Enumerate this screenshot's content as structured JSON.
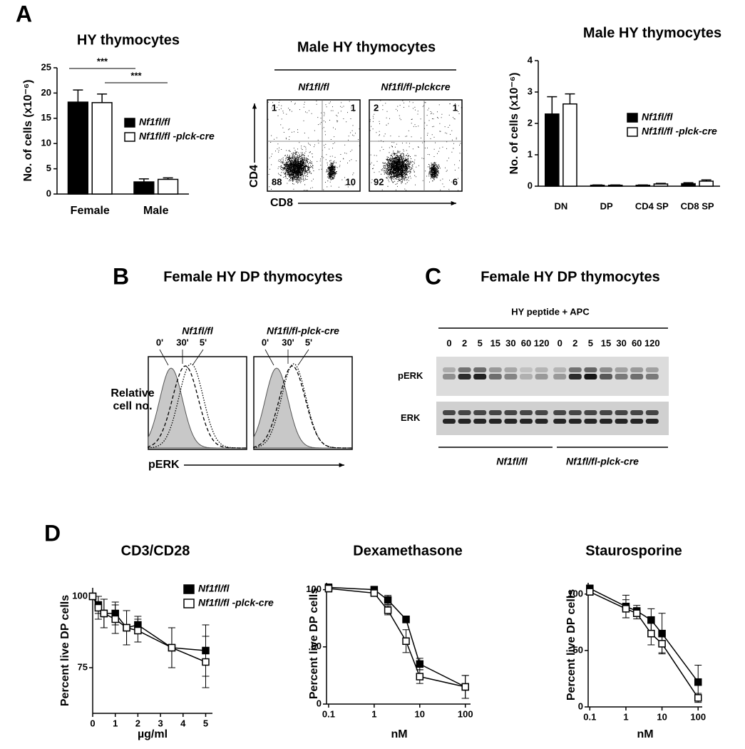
{
  "panel_labels": [
    "A",
    "B",
    "C",
    "D"
  ],
  "chart_data": [
    {
      "type": "bar",
      "title": "HY thymocytes",
      "y_label": "No. of cells (x10⁻⁶)",
      "categories": [
        "Female",
        "Male"
      ],
      "series": [
        {
          "name": "Nf1fl/fl",
          "color": "#000000",
          "values": [
            18.2,
            2.4
          ],
          "errors": [
            2.4,
            0.6
          ]
        },
        {
          "name": "Nf1fl/fl -plck-cre",
          "color": "#ffffff",
          "values": [
            18.1,
            2.9
          ],
          "errors": [
            1.7,
            0.3
          ]
        }
      ],
      "ylim": [
        0,
        25
      ],
      "yticks": [
        0,
        5,
        10,
        15,
        20,
        25
      ],
      "annotations": [
        "***",
        "***"
      ]
    },
    {
      "type": "bar",
      "title": "Male HY thymocytes",
      "y_label": "No. of cells (x10⁻⁶)",
      "categories": [
        "DN",
        "DP",
        "CD4 SP",
        "CD8 SP"
      ],
      "series": [
        {
          "name": "Nf1fl/fl",
          "color": "#000000",
          "values": [
            2.3,
            0.03,
            0.03,
            0.08
          ],
          "errors": [
            0.55,
            0.01,
            0.01,
            0.03
          ]
        },
        {
          "name": "Nf1fl/fl -plck-cre",
          "color": "#ffffff",
          "values": [
            2.62,
            0.03,
            0.07,
            0.16
          ],
          "errors": [
            0.32,
            0.01,
            0.02,
            0.04
          ]
        }
      ],
      "ylim": [
        0,
        4
      ],
      "yticks": [
        0,
        1,
        2,
        3,
        4
      ]
    },
    {
      "type": "line",
      "title": "CD3/CD28",
      "x_label": "µg/ml",
      "y_label": "Percent live DP cells",
      "x": [
        0,
        0.25,
        0.5,
        1,
        1.5,
        2,
        3.5,
        5
      ],
      "series": [
        {
          "name": "Nf1fl/fl",
          "color": "#000000",
          "values": [
            100,
            97,
            94,
            94,
            89,
            90,
            82,
            81
          ],
          "errors": [
            0,
            3,
            5,
            4,
            6,
            3,
            7,
            9
          ]
        },
        {
          "name": "Nf1fl/fl -plck-cre",
          "color": "#ffffff",
          "values": [
            100,
            96,
            94,
            92,
            89,
            88,
            82,
            77
          ],
          "errors": [
            0,
            4,
            5,
            5,
            6,
            4,
            7,
            9
          ]
        }
      ],
      "xlim": [
        0,
        5.3
      ],
      "xticks": [
        0,
        1,
        2,
        3,
        4,
        5
      ],
      "ylim": [
        59,
        103
      ],
      "yticks": [
        75,
        100
      ]
    },
    {
      "type": "line",
      "title": "Dexamethasone",
      "x_label": "nM",
      "y_label": "Percent live DP cells",
      "log_x": true,
      "x": [
        0.1,
        1,
        2,
        5,
        10,
        100
      ],
      "series": [
        {
          "color": "#000000",
          "values": [
            102,
            100,
            91,
            74,
            35,
            15
          ],
          "errors": [
            3,
            2,
            4,
            3,
            5,
            10
          ]
        },
        {
          "color": "#ffffff",
          "values": [
            101,
            97,
            82,
            55,
            24,
            15
          ],
          "errors": [
            3,
            2,
            4,
            10,
            6,
            10
          ]
        }
      ],
      "xlim": [
        0.09,
        130
      ],
      "xticks": [
        0.1,
        1,
        10,
        100
      ],
      "ylim": [
        0,
        106
      ],
      "yticks": [
        0,
        50,
        100
      ]
    },
    {
      "type": "line",
      "title": "Staurosporine",
      "x_label": "nM",
      "y_label": "Percent live DP cells",
      "log_x": true,
      "x": [
        0.1,
        1,
        2,
        5,
        10,
        100
      ],
      "series": [
        {
          "color": "#000000",
          "values": [
            105,
            89,
            85,
            77,
            65,
            22
          ],
          "errors": [
            3,
            10,
            5,
            10,
            18,
            15
          ]
        },
        {
          "color": "#ffffff",
          "values": [
            102,
            87,
            83,
            65,
            56,
            8
          ],
          "errors": [
            3,
            8,
            5,
            10,
            8,
            4
          ]
        }
      ],
      "xlim": [
        0.09,
        130
      ],
      "xticks": [
        0.1,
        1,
        10,
        100
      ],
      "ylim": [
        0,
        110
      ],
      "yticks": [
        0,
        50,
        100
      ]
    }
  ],
  "flow": {
    "title": "Male HY thymocytes",
    "x_label": "CD8",
    "y_label": "CD4",
    "plots": [
      {
        "header": "Nf1fl/fl",
        "quadrants": [
          1,
          1,
          88,
          10
        ]
      },
      {
        "header": "Nf1fl/fl-plckcre",
        "quadrants": [
          2,
          1,
          92,
          6
        ]
      }
    ]
  },
  "histograms": {
    "title": "Female HY DP thymocytes",
    "x_label": "pERK",
    "y_label": [
      "Relative",
      "cell no."
    ],
    "plots": [
      {
        "header": "Nf1fl/fl",
        "times": [
          "0'",
          "30'",
          "5'"
        ]
      },
      {
        "header": "Nf1fl/fl-plck-cre",
        "times": [
          "0'",
          "30'",
          "5'"
        ]
      }
    ]
  },
  "blot": {
    "title": "Female HY DP thymocytes",
    "treatment": "HY peptide + APC",
    "lanes": [
      0,
      2,
      5,
      15,
      30,
      60,
      120,
      0,
      2,
      5,
      15,
      30,
      60,
      120
    ],
    "rows": [
      "pERK",
      "ERK"
    ],
    "groups": [
      "Nf1fl/fl",
      "Nf1fl/fl-plck-cre"
    ]
  }
}
